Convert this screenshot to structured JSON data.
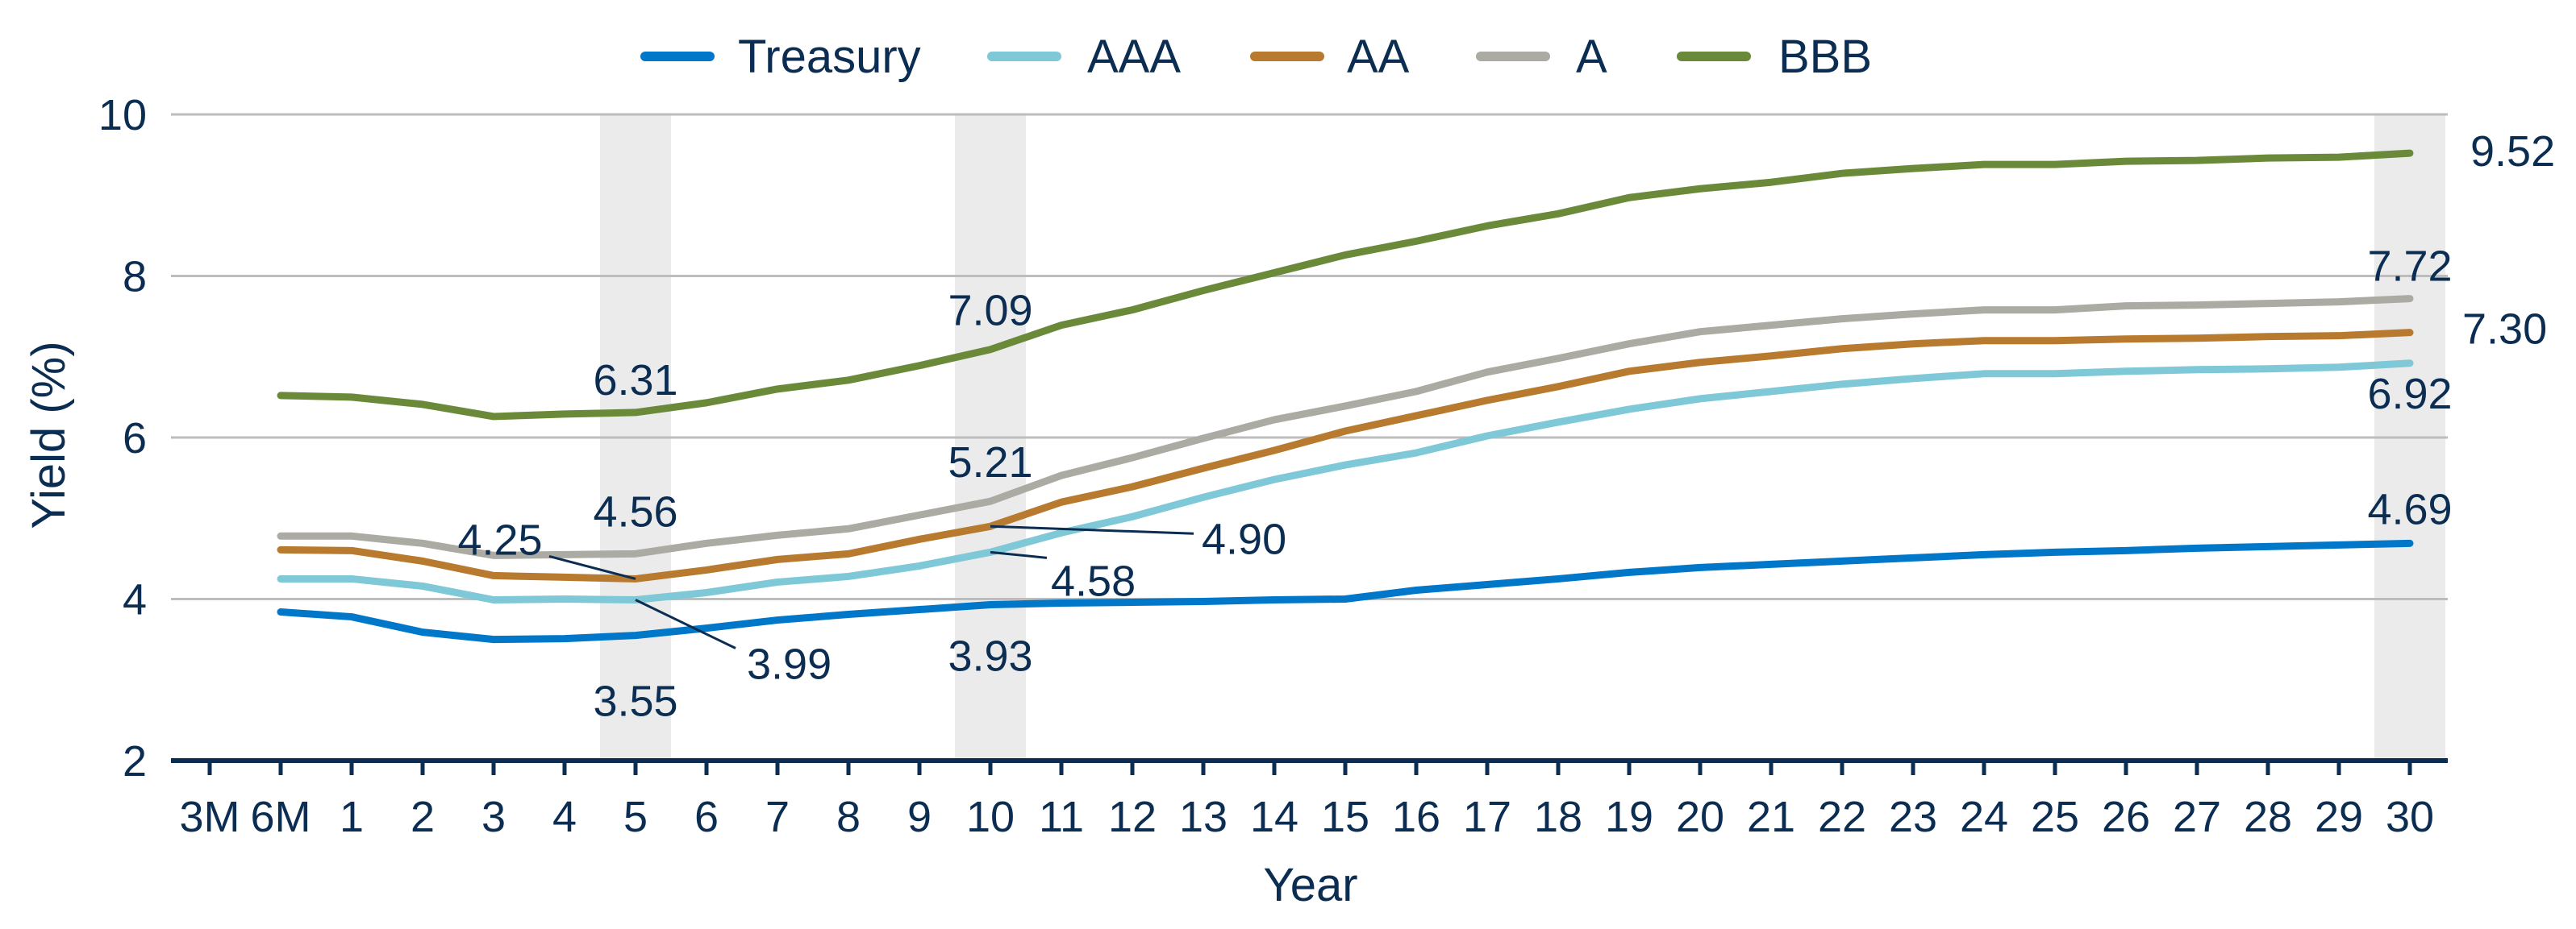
{
  "chart_data": {
    "type": "line",
    "title": "",
    "xlabel": "Year",
    "ylabel": "Yield (%)",
    "ylim": [
      2,
      10
    ],
    "yticks": [
      "2",
      "4",
      "6",
      "8",
      "10"
    ],
    "categories": [
      "3M",
      "6M",
      "1",
      "2",
      "3",
      "4",
      "5",
      "6",
      "7",
      "8",
      "9",
      "10",
      "11",
      "12",
      "13",
      "14",
      "15",
      "16",
      "17",
      "18",
      "19",
      "20",
      "21",
      "22",
      "23",
      "24",
      "25",
      "26",
      "27",
      "28",
      "29",
      "30"
    ],
    "grid": "horizontal",
    "legend_position": "top",
    "highlighted_categories": [
      "5",
      "10",
      "30"
    ],
    "series": [
      {
        "name": "Treasury",
        "color": "#0077c8",
        "values": [
          null,
          3.84,
          3.78,
          3.59,
          3.5,
          3.51,
          3.55,
          3.64,
          3.74,
          3.81,
          3.87,
          3.93,
          3.95,
          3.96,
          3.97,
          3.99,
          4.0,
          4.11,
          4.18,
          4.25,
          4.33,
          4.39,
          4.43,
          4.47,
          4.51,
          4.55,
          4.58,
          4.6,
          4.63,
          4.65,
          4.67,
          4.69
        ]
      },
      {
        "name": "AAA",
        "color": "#7ec8d8",
        "values": [
          null,
          4.25,
          4.25,
          4.16,
          3.99,
          4.0,
          3.99,
          4.08,
          4.21,
          4.28,
          4.41,
          4.58,
          4.82,
          5.02,
          5.26,
          5.48,
          5.66,
          5.81,
          6.02,
          6.19,
          6.35,
          6.48,
          6.57,
          6.66,
          6.73,
          6.79,
          6.79,
          6.82,
          6.84,
          6.85,
          6.87,
          6.92
        ]
      },
      {
        "name": "AA",
        "color": "#b87a2e",
        "values": [
          null,
          4.61,
          4.6,
          4.47,
          4.29,
          4.27,
          4.25,
          4.36,
          4.49,
          4.56,
          4.74,
          4.9,
          5.2,
          5.39,
          5.62,
          5.84,
          6.08,
          6.27,
          6.46,
          6.63,
          6.82,
          6.93,
          7.01,
          7.1,
          7.16,
          7.2,
          7.2,
          7.22,
          7.23,
          7.25,
          7.26,
          7.3
        ]
      },
      {
        "name": "A",
        "color": "#abaaa3",
        "values": [
          null,
          4.78,
          4.78,
          4.69,
          4.54,
          4.55,
          4.56,
          4.69,
          4.79,
          4.87,
          5.04,
          5.21,
          5.53,
          5.75,
          5.99,
          6.22,
          6.39,
          6.57,
          6.81,
          6.98,
          7.16,
          7.31,
          7.39,
          7.47,
          7.53,
          7.58,
          7.58,
          7.63,
          7.64,
          7.66,
          7.68,
          7.72
        ]
      },
      {
        "name": "BBB",
        "color": "#6a8a3a",
        "values": [
          null,
          6.52,
          6.5,
          6.41,
          6.26,
          6.29,
          6.31,
          6.43,
          6.6,
          6.71,
          6.89,
          7.09,
          7.39,
          7.58,
          7.82,
          8.04,
          8.26,
          8.43,
          8.62,
          8.77,
          8.97,
          9.08,
          9.16,
          9.27,
          9.33,
          9.38,
          9.38,
          9.42,
          9.43,
          9.46,
          9.47,
          9.52
        ]
      }
    ],
    "annotations": [
      {
        "series": "BBB",
        "x": "5",
        "text": "6.31"
      },
      {
        "series": "BBB",
        "x": "10",
        "text": "7.09"
      },
      {
        "series": "A",
        "x": "10",
        "text": "5.21"
      },
      {
        "series": "AA",
        "x": "5",
        "text": "4.25"
      },
      {
        "series": "A",
        "x": "5",
        "text": "4.56"
      },
      {
        "series": "AA",
        "x": "10",
        "text": "4.90"
      },
      {
        "series": "AAA",
        "x": "10",
        "text": "4.58"
      },
      {
        "series": "AAA",
        "x": "5",
        "text": "3.99"
      },
      {
        "series": "Treasury",
        "x": "5",
        "text": "3.55"
      },
      {
        "series": "Treasury",
        "x": "10",
        "text": "3.93"
      },
      {
        "series": "BBB",
        "x": "30",
        "text": "9.52"
      },
      {
        "series": "A",
        "x": "30",
        "text": "7.72"
      },
      {
        "series": "AA",
        "x": "30",
        "text": "7.30"
      },
      {
        "series": "AAA",
        "x": "30",
        "text": "6.92"
      },
      {
        "series": "Treasury",
        "x": "30",
        "text": "4.69"
      }
    ],
    "colors": {
      "text": "#0c2d52",
      "grid": "#bdbdbd",
      "highlight": "#ebebeb"
    }
  }
}
